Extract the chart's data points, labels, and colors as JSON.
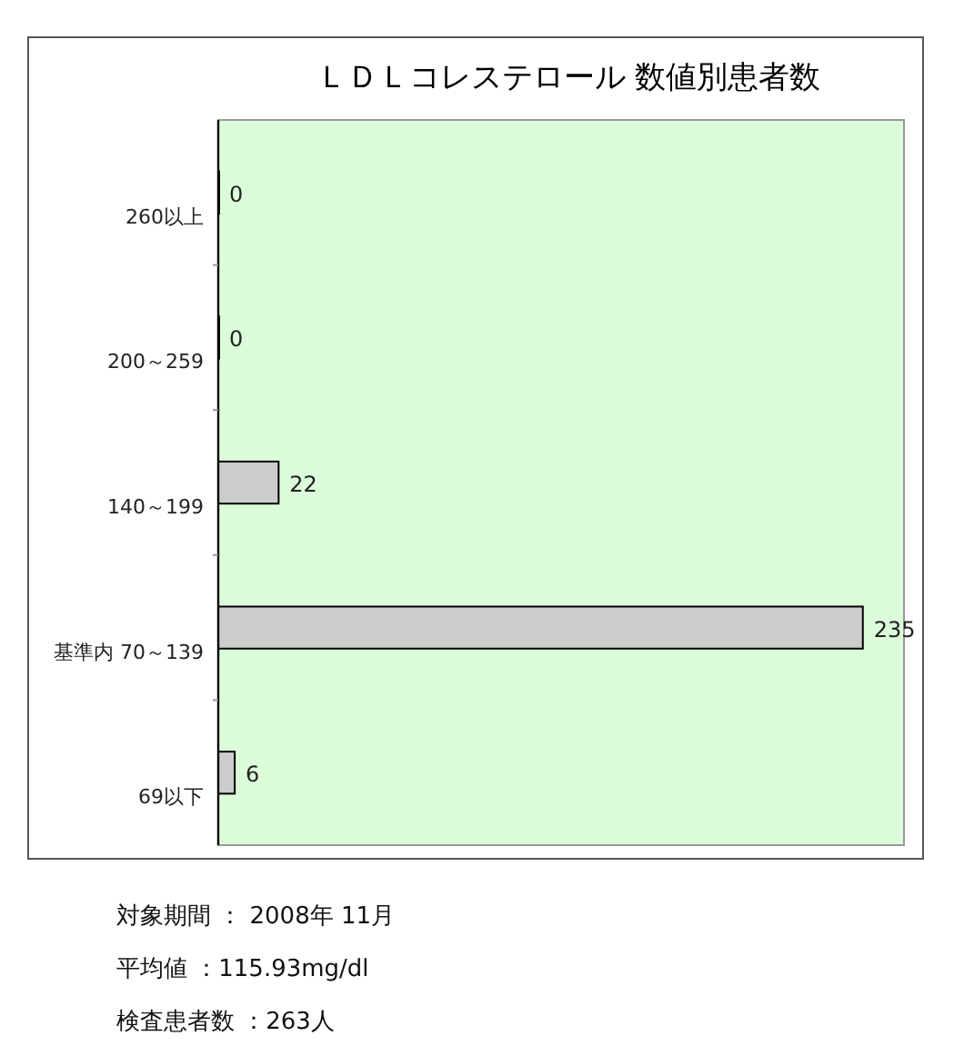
{
  "chart_data": {
    "type": "bar",
    "orientation": "horizontal",
    "title": "ＬＤＬコレステロール 数値別患者数",
    "categories": [
      "260以上",
      "200～259",
      "140～199",
      "基準内 70～139",
      "69以下"
    ],
    "values": [
      0,
      0,
      22,
      235,
      6
    ],
    "color": "#cccccc",
    "xlim": [
      0,
      250
    ],
    "data_labels": true,
    "annotations": [
      "対象期間 ： 2008年 11月",
      "平均値 ：115.93mg/dl",
      "検査患者数 ：263人"
    ],
    "tick_labels": "y"
  }
}
